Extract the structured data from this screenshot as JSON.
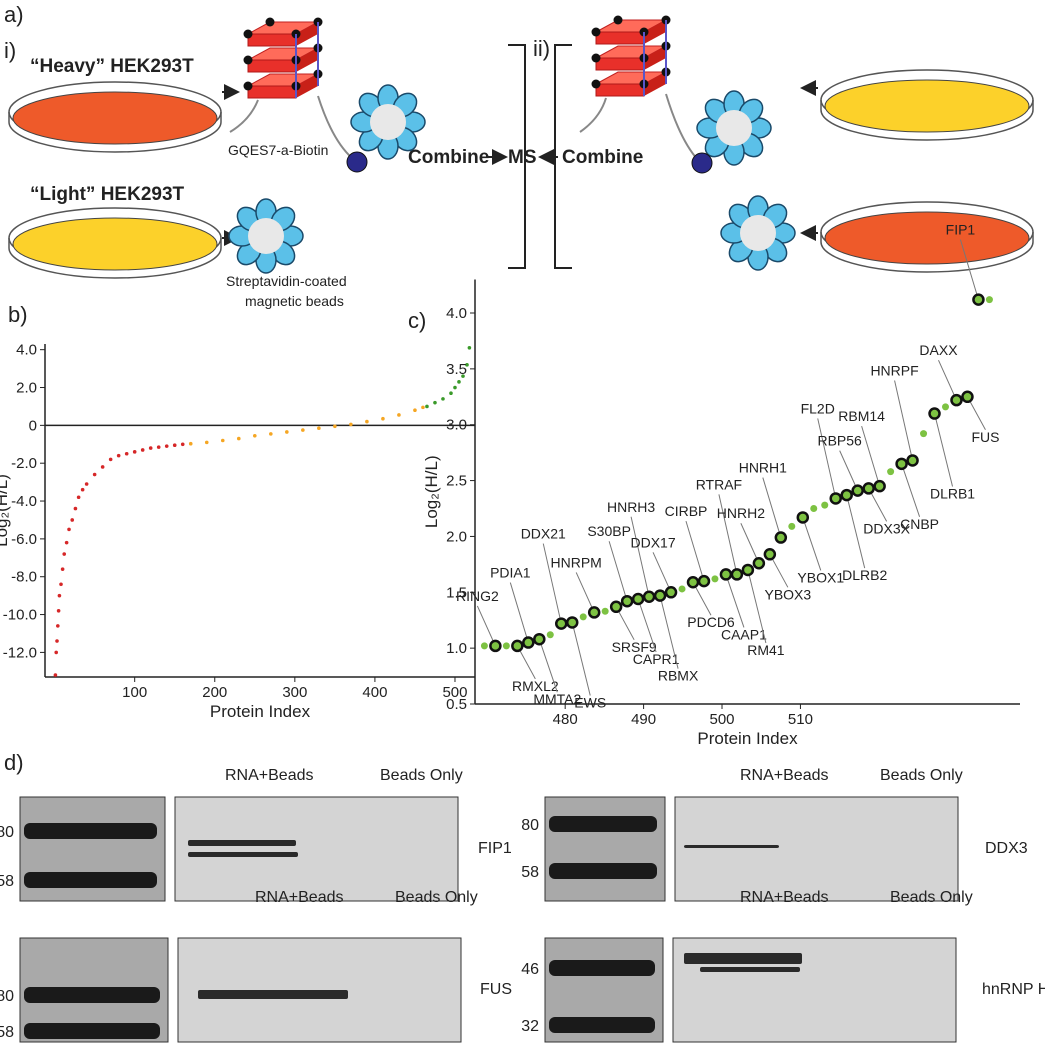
{
  "panel_a": {
    "label": "a)",
    "sub_i": "i)",
    "sub_ii": "ii)",
    "heavy": "“Heavy” HEK293T",
    "light": "“Light” HEK293T",
    "rna": "GQES7-a-Biotin",
    "beads": [
      "Streptavidin-coated",
      "magnetic beads"
    ],
    "combine_left": "Combine",
    "ms": "MS",
    "combine_right": "Combine"
  },
  "chart_data": [
    {
      "type": "scatter",
      "panel_label": "b)",
      "x_label": "Protein Index",
      "y_label": "Log₂(H/L)",
      "xlim": [
        -12,
        525
      ],
      "ylim": [
        -13.3,
        4.3
      ],
      "xticks": [
        100,
        200,
        300,
        400,
        500
      ],
      "yticks": [
        {
          "value": 4,
          "label": "4.0"
        },
        {
          "value": 2,
          "label": "2.0"
        },
        0,
        {
          "value": -2,
          "label": "-2.0"
        },
        {
          "value": -4,
          "label": "-4.0"
        },
        {
          "value": -6,
          "label": "-6.0"
        },
        {
          "value": -8,
          "label": "-8.0"
        },
        {
          "value": -10,
          "label": "-10.0"
        },
        {
          "value": -12,
          "label": "-12.0"
        }
      ],
      "reference_line": 0,
      "series": [
        {
          "color": "#d62728",
          "x": [
            1,
            2,
            3,
            4,
            5,
            6,
            8,
            10,
            12,
            15,
            18,
            22,
            26,
            30,
            35,
            40,
            50,
            60,
            70,
            80,
            90,
            100,
            110,
            120,
            130,
            140,
            150,
            160
          ],
          "values": [
            -13.2,
            -12,
            -11.4,
            -10.6,
            -9.8,
            -9,
            -8.4,
            -7.6,
            -6.8,
            -6.2,
            -5.5,
            -5,
            -4.4,
            -3.8,
            -3.4,
            -3.1,
            -2.6,
            -2.2,
            -1.8,
            -1.6,
            -1.5,
            -1.4,
            -1.3,
            -1.2,
            -1.15,
            -1.1,
            -1.05,
            -1.0
          ]
        },
        {
          "color": "#f5a623",
          "x": [
            170,
            190,
            210,
            230,
            250,
            270,
            290,
            310,
            330,
            350,
            370,
            390,
            410,
            430,
            450,
            460
          ],
          "values": [
            -0.97,
            -0.9,
            -0.8,
            -0.7,
            -0.55,
            -0.45,
            -0.35,
            -0.25,
            -0.15,
            -0.05,
            0.05,
            0.2,
            0.35,
            0.55,
            0.8,
            0.95
          ]
        },
        {
          "color": "#3a9a2a",
          "x": [
            465,
            475,
            485,
            495,
            500,
            505,
            510,
            515,
            518
          ],
          "values": [
            1.0,
            1.2,
            1.4,
            1.7,
            2.0,
            2.3,
            2.6,
            3.2,
            4.1
          ]
        }
      ]
    },
    {
      "type": "scatter",
      "panel_label": "c)",
      "x_label": "Protein Index",
      "y_label": "Log₂(H/L)",
      "xlim": [
        468.5,
        538
      ],
      "ylim": [
        0.5,
        4.3
      ],
      "xticks": [
        480,
        490,
        500,
        510
      ],
      "yticks": [
        0.5,
        {
          "value": 1,
          "label": "1.0"
        },
        1.5,
        {
          "value": 2,
          "label": "2.0"
        },
        2.5,
        {
          "value": 3,
          "label": "3.0"
        },
        3.5,
        {
          "value": 4,
          "label": "4.0"
        }
      ],
      "series": [
        {
          "color": "#7dc242",
          "x": [
            469.7,
            471.1,
            472.5,
            473.9,
            475.3,
            476.7,
            478.1,
            479.5,
            480.9,
            482.3,
            483.7,
            485.1,
            486.5,
            487.9,
            489.3,
            490.7,
            492.1,
            493.5,
            494.9,
            496.3,
            497.7,
            499.1,
            500.5,
            501.9,
            503.3,
            504.7,
            506.1,
            507.5,
            508.9,
            510.3,
            511.7,
            513.1,
            514.5,
            515.9,
            517.3,
            518.7,
            520.1,
            521.5,
            522.9,
            524.3,
            525.7,
            527.1,
            528.5,
            529.9,
            531.3,
            532.7,
            534.1
          ],
          "values": [
            1.02,
            1.02,
            1.02,
            1.02,
            1.05,
            1.08,
            1.12,
            1.22,
            1.23,
            1.28,
            1.32,
            1.33,
            1.37,
            1.42,
            1.44,
            1.46,
            1.47,
            1.5,
            1.53,
            1.59,
            1.6,
            1.62,
            1.66,
            1.66,
            1.7,
            1.76,
            1.84,
            1.99,
            2.09,
            2.17,
            2.25,
            2.28,
            2.34,
            2.37,
            2.41,
            2.43,
            2.45,
            2.58,
            2.65,
            2.68,
            2.92,
            3.1,
            3.16,
            3.22,
            3.25,
            4.12,
            4.12
          ],
          "point_labels": [
            null,
            "RING2",
            null,
            "RMXL2",
            "PDIA1",
            "MMTA2",
            null,
            "DDX21",
            "EWS",
            null,
            "HNRPM",
            null,
            "SRSF9",
            "S30BP",
            "CAPR1",
            "HNRH3",
            "RBMX",
            "DDX17",
            null,
            "PDCD6",
            "CIRBP",
            null,
            "CAAP1",
            "RTRAF",
            "RM41",
            "HNRH2",
            "YBOX3",
            "HNRH1",
            null,
            "YBOX1",
            null,
            null,
            "FL2D",
            "DLRB2",
            "RBP56",
            "DDX3X",
            "RBM14",
            null,
            "CNBP",
            "HNRPF",
            null,
            "DLRB1",
            null,
            "DAXX",
            "FUS",
            "FIP1",
            null
          ]
        }
      ]
    }
  ],
  "panel_d": {
    "label": "d)",
    "blots": [
      {
        "lanes": [
          "RNA+Beads",
          "Beads Only"
        ],
        "protein": "FIP1",
        "markers": [
          80,
          58
        ]
      },
      {
        "lanes": [
          "RNA+Beads",
          "Beads Only"
        ],
        "protein": "DDX3",
        "markers": [
          80,
          58
        ]
      },
      {
        "lanes": [
          "RNA+Beads",
          "Beads Only"
        ],
        "protein": "FUS",
        "markers": [
          80,
          58
        ]
      },
      {
        "lanes": [
          "RNA+Beads",
          "Beads Only"
        ],
        "protein": "hnRNP H",
        "markers": [
          46,
          32
        ]
      }
    ]
  }
}
